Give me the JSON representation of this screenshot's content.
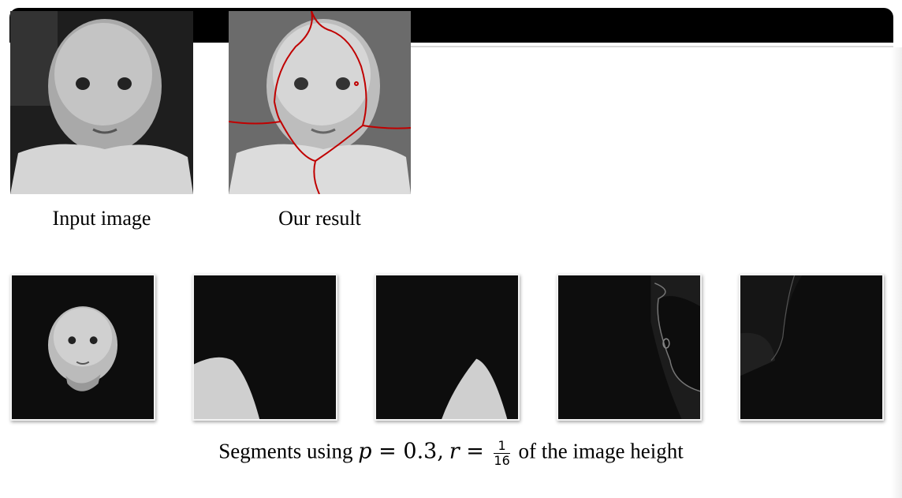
{
  "figure": {
    "caption_input": "Input image",
    "caption_result": "Our result",
    "segments_caption": {
      "prefix": "Segments using",
      "p_var": "p",
      "eq1": " = ",
      "p_value": "0.3",
      "comma": ",",
      "r_var": "r",
      "eq2": " = ",
      "frac_num": "1",
      "frac_den": "16",
      "suffix": "of the image height"
    },
    "boundary_color": "#c00000"
  }
}
